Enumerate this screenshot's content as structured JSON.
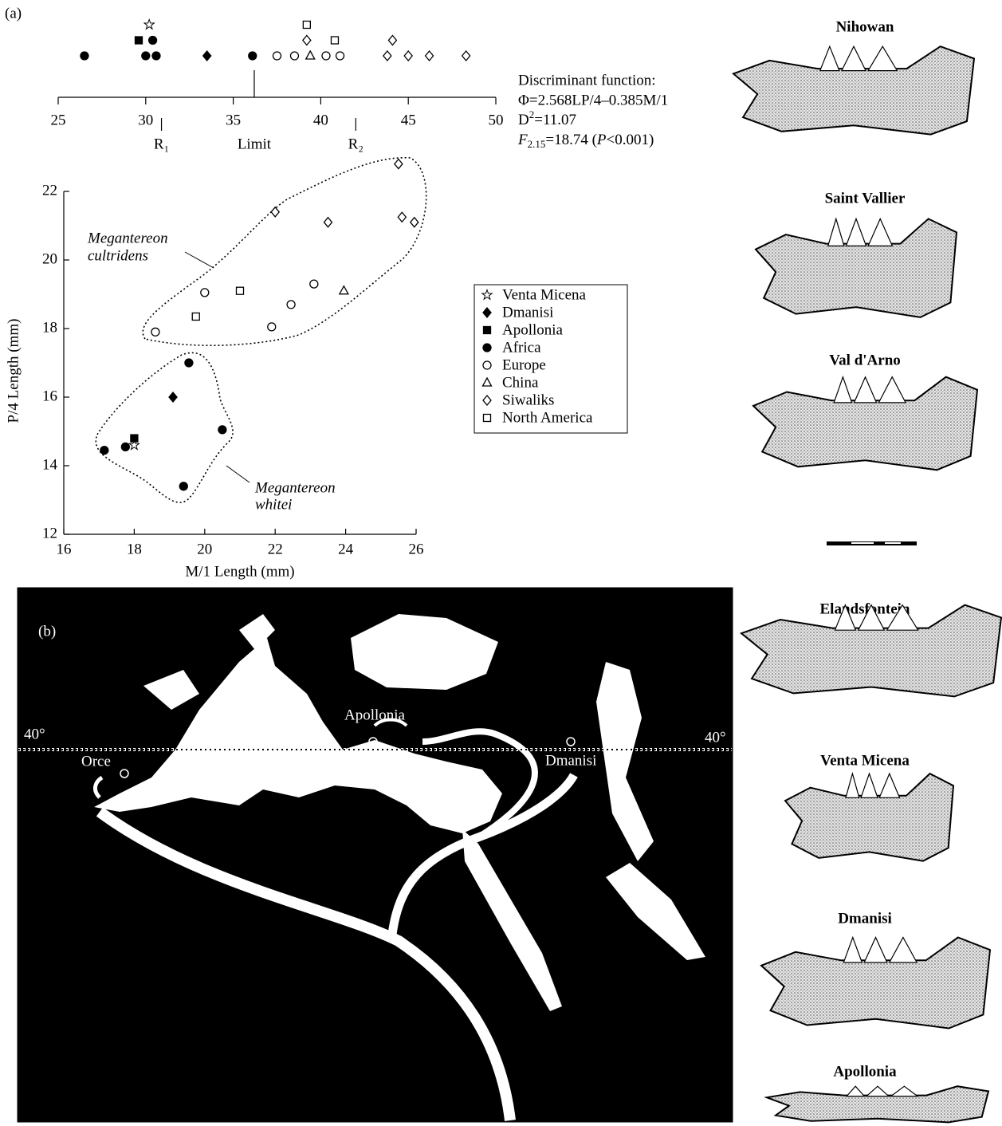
{
  "panel_labels": [
    "(a)",
    "(b)"
  ],
  "chart_data": [
    {
      "type": "strip",
      "xlim": [
        25,
        50
      ],
      "xticks": [
        25,
        30,
        35,
        40,
        45,
        50
      ],
      "series": [
        {
          "marker": "star",
          "filled": false,
          "color": "#000000",
          "values": [
            30.2
          ]
        },
        {
          "marker": "diamond",
          "filled": true,
          "color": "#000000",
          "values": [
            33.5
          ]
        },
        {
          "marker": "square",
          "filled": true,
          "color": "#000000",
          "values": [
            29.6
          ]
        },
        {
          "marker": "circle",
          "filled": true,
          "color": "#000000",
          "values": [
            26.5,
            30.0,
            30.6,
            36.1,
            30.4
          ]
        },
        {
          "marker": "circle",
          "filled": false,
          "color": "#000000",
          "values": [
            37.5,
            38.5,
            40.3,
            41.1
          ]
        },
        {
          "marker": "triangle",
          "filled": false,
          "color": "#000000",
          "values": [
            39.4
          ]
        },
        {
          "marker": "diamond",
          "filled": false,
          "color": "#000000",
          "values": [
            43.8,
            45.0,
            46.2,
            48.3,
            39.2,
            44.1
          ]
        },
        {
          "marker": "square",
          "filled": false,
          "color": "#000000",
          "values": [
            39.2,
            40.8
          ]
        }
      ],
      "reference_lines": [
        {
          "value": 30.9,
          "label": "R₁"
        },
        {
          "value": 36.2,
          "label": "Limit"
        },
        {
          "value": 42.0,
          "label": "R₂"
        }
      ],
      "annotation": {
        "title": "Discriminant function:",
        "formula": "Φ=2.568LP/4–0.385M/1",
        "d2": [
          "D",
          "2",
          "=11.07"
        ],
        "f": [
          "F",
          "2.15",
          "=18.74 (",
          "P",
          "<0.001)"
        ]
      }
    },
    {
      "type": "scatter",
      "xlabel": "M/1 Length (mm)",
      "ylabel": "P/4 Length (mm)",
      "xlim": [
        16,
        26
      ],
      "ylim": [
        12,
        22
      ],
      "xticks": [
        16,
        18,
        20,
        22,
        24,
        26
      ],
      "yticks": [
        12,
        14,
        16,
        18,
        20,
        22
      ],
      "legend": "right",
      "series": [
        {
          "name": "Venta Micena",
          "marker": "star",
          "filled": false,
          "color": "#000000",
          "x": [
            18.0
          ],
          "y": [
            14.6
          ]
        },
        {
          "name": "Dmanisi",
          "marker": "diamond",
          "filled": true,
          "color": "#000000",
          "x": [
            19.1
          ],
          "y": [
            16.0
          ]
        },
        {
          "name": "Apollonia",
          "marker": "square",
          "filled": true,
          "color": "#000000",
          "x": [
            18.0
          ],
          "y": [
            14.8
          ]
        },
        {
          "name": "Africa",
          "marker": "circle",
          "filled": true,
          "color": "#000000",
          "x": [
            17.15,
            17.75,
            19.55,
            20.5,
            19.4
          ],
          "y": [
            14.45,
            14.55,
            17.0,
            15.05,
            13.4
          ]
        },
        {
          "name": "Europe",
          "marker": "circle",
          "filled": false,
          "color": "#000000",
          "x": [
            18.6,
            20.0,
            21.9,
            22.45,
            23.1
          ],
          "y": [
            17.9,
            19.05,
            18.05,
            18.7,
            19.3
          ]
        },
        {
          "name": "China",
          "marker": "triangle",
          "filled": false,
          "color": "#000000",
          "x": [
            23.95
          ],
          "y": [
            19.1
          ]
        },
        {
          "name": "Siwaliks",
          "marker": "diamond",
          "filled": false,
          "color": "#000000",
          "x": [
            22.0,
            23.5,
            25.5,
            25.6,
            25.95
          ],
          "y": [
            21.4,
            21.1,
            22.8,
            21.25,
            21.1
          ]
        },
        {
          "name": "North America",
          "marker": "square",
          "filled": false,
          "color": "#000000",
          "x": [
            19.75,
            21.0
          ],
          "y": [
            18.35,
            19.1
          ]
        }
      ],
      "annotations": [
        [
          "Megantereon",
          "cultridens"
        ],
        [
          "Megantereon",
          "whitei"
        ]
      ]
    }
  ],
  "map": {
    "parallel_left": "40°",
    "parallel_right": "40°",
    "sites": [
      "Orce",
      "Apollonia",
      "Dmanisi"
    ]
  },
  "specimens": [
    "Nihowan",
    "Saint Vallier",
    "Val d'Arno",
    "Elandsfontein",
    "Venta Micena",
    "Dmanisi",
    "Apollonia"
  ]
}
